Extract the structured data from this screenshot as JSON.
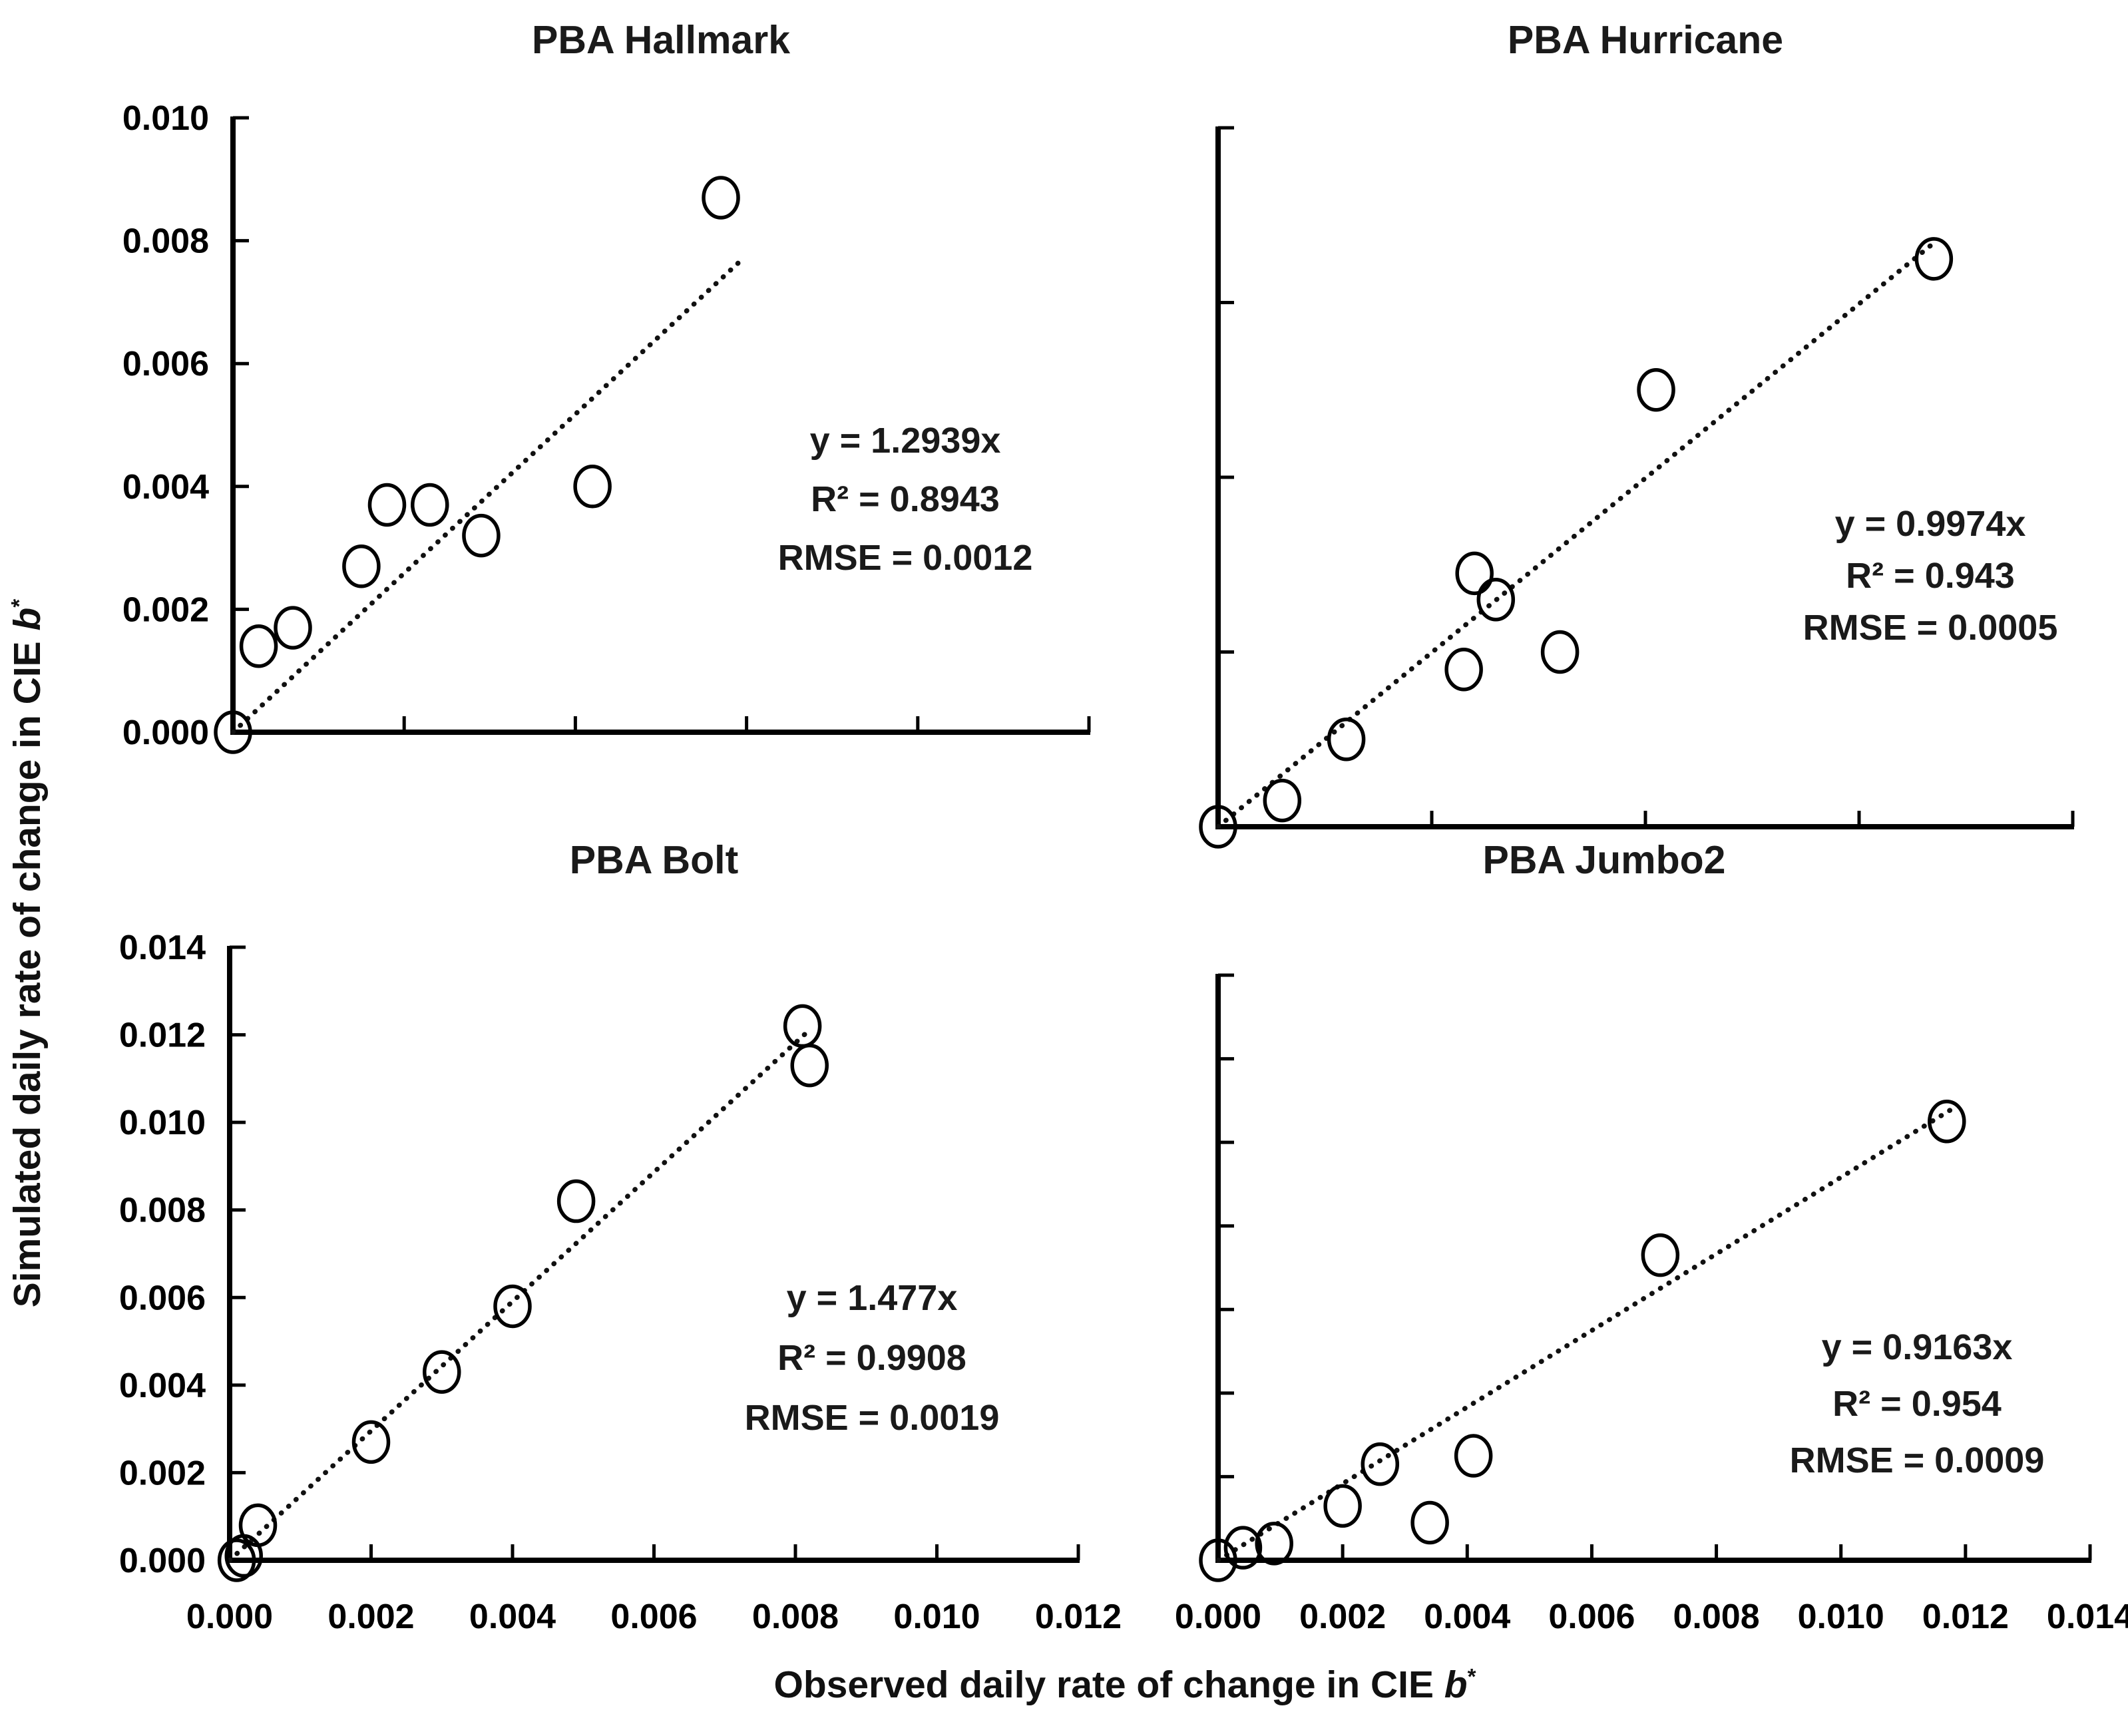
{
  "figure": {
    "background": "#ffffff",
    "foreground": "#000000",
    "x_axis_title": {
      "prefix": "Observed daily rate of change in CIE ",
      "variable": "b",
      "superscript": "*"
    },
    "y_axis_title": {
      "prefix": "Simulated daily rate of change in CIE ",
      "variable": "b",
      "superscript": "*"
    }
  },
  "chart_data": [
    {
      "id": "hallmark",
      "type": "scatter",
      "title": "PBA Hallmark",
      "equation": "y = 1.2939x",
      "r_squared": "R² = 0.8943",
      "rmse": "RMSE = 0.0012",
      "x_range": [
        0,
        0.01
      ],
      "y_range": [
        0,
        0.01
      ],
      "x_tick_step": 0.002,
      "y_tick_step": 0.002,
      "x_tick_labels": [],
      "y_tick_labels": [
        "0.000",
        "0.002",
        "0.004",
        "0.006",
        "0.008",
        "0.010"
      ],
      "trendline": {
        "slope": 1.2939,
        "x_start": 0,
        "x_end": 0.0059,
        "style": "dotted"
      },
      "points": [
        [
          0.0,
          0.0
        ],
        [
          0.0003,
          0.0014
        ],
        [
          0.0007,
          0.0017
        ],
        [
          0.0015,
          0.0027
        ],
        [
          0.0018,
          0.0037
        ],
        [
          0.0023,
          0.0037
        ],
        [
          0.0029,
          0.0032
        ],
        [
          0.0042,
          0.004
        ],
        [
          0.0057,
          0.0087
        ]
      ]
    },
    {
      "id": "hurricane",
      "type": "scatter",
      "title": "PBA Hurricane",
      "equation": "y = 0.9974x",
      "r_squared": "R² = 0.943",
      "rmse": "RMSE = 0.0005",
      "x_range": [
        0,
        0.008
      ],
      "y_range": [
        0,
        0.008
      ],
      "x_tick_step": 0.002,
      "y_tick_step": 0.002,
      "x_tick_labels": [],
      "y_tick_labels": [],
      "trendline": {
        "slope": 0.9974,
        "x_start": 0,
        "x_end": 0.0067,
        "style": "dotted"
      },
      "points": [
        [
          0.0,
          0.0
        ],
        [
          0.0006,
          0.0003
        ],
        [
          0.0012,
          0.001
        ],
        [
          0.0023,
          0.0018
        ],
        [
          0.0024,
          0.0029
        ],
        [
          0.0026,
          0.0026
        ],
        [
          0.0032,
          0.002
        ],
        [
          0.0041,
          0.005
        ],
        [
          0.0067,
          0.0065
        ]
      ]
    },
    {
      "id": "bolt",
      "type": "scatter",
      "title": "PBA Bolt",
      "equation": "y = 1.477x",
      "r_squared": "R² = 0.9908",
      "rmse": "RMSE = 0.0019",
      "x_range": [
        0,
        0.012
      ],
      "y_range": [
        0,
        0.014
      ],
      "x_tick_step": 0.002,
      "y_tick_step": 0.002,
      "x_tick_labels": [
        "0.000",
        "0.002",
        "0.004",
        "0.006",
        "0.008",
        "0.010",
        "0.012"
      ],
      "y_tick_labels": [
        "0.000",
        "0.002",
        "0.004",
        "0.006",
        "0.008",
        "0.010",
        "0.012",
        "0.014"
      ],
      "trendline": {
        "slope": 1.477,
        "x_start": 0,
        "x_end": 0.00815,
        "style": "dotted"
      },
      "points": [
        [
          0.0001,
          0.0
        ],
        [
          0.0002,
          0.0001
        ],
        [
          0.0004,
          0.0008
        ],
        [
          0.002,
          0.0027
        ],
        [
          0.003,
          0.0043
        ],
        [
          0.004,
          0.0058
        ],
        [
          0.0049,
          0.0082
        ],
        [
          0.0081,
          0.0122
        ],
        [
          0.0082,
          0.0113
        ]
      ]
    },
    {
      "id": "jumbo2",
      "type": "scatter",
      "title": "PBA Jumbo2",
      "equation": "y = 0.9163x",
      "r_squared": "R² = 0.954",
      "rmse": "RMSE = 0.0009",
      "x_range": [
        0,
        0.014
      ],
      "y_range": [
        0,
        0.014
      ],
      "x_tick_step": 0.002,
      "y_tick_step": 0.002,
      "x_tick_labels": [
        "0.000",
        "0.002",
        "0.004",
        "0.006",
        "0.008",
        "0.010",
        "0.012",
        "0.014"
      ],
      "y_tick_labels": [],
      "trendline": {
        "slope": 0.9163,
        "x_start": 0,
        "x_end": 0.0118,
        "style": "dotted"
      },
      "points": [
        [
          0.0,
          0.0
        ],
        [
          0.0004,
          0.0003
        ],
        [
          0.0009,
          0.0004
        ],
        [
          0.002,
          0.0013
        ],
        [
          0.0026,
          0.0023
        ],
        [
          0.0034,
          0.0009
        ],
        [
          0.0041,
          0.0025
        ],
        [
          0.0071,
          0.0073
        ],
        [
          0.0117,
          0.0105
        ]
      ]
    }
  ]
}
